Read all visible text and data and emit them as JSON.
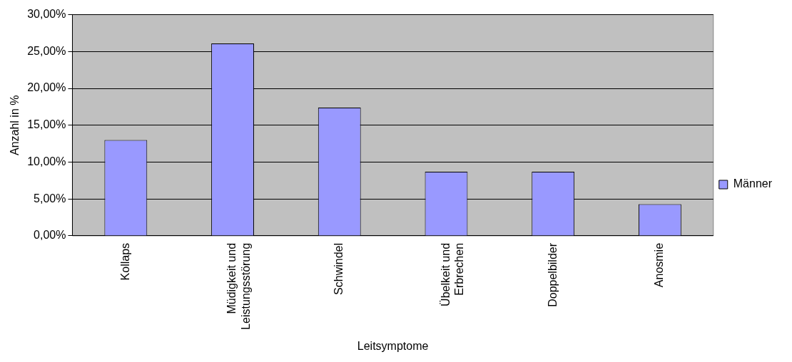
{
  "chart_data": {
    "type": "bar",
    "xlabel": "Leitsymptome",
    "ylabel": "Anzahl in %",
    "categories": [
      "Kollaps",
      "Müdigkeit und\nLeistungsstörung",
      "Schwindel",
      "Übelkeit und\nErbrechen",
      "Doppelbilder",
      "Anosmie"
    ],
    "series": [
      {
        "name": "Männer",
        "color": "#9999ff",
        "values": [
          13,
          26.1,
          17.4,
          8.7,
          8.7,
          4.3
        ]
      }
    ],
    "ylim": [
      0,
      30
    ],
    "yticks": [
      {
        "value": 0,
        "label": "0,00%"
      },
      {
        "value": 5,
        "label": "5,00%"
      },
      {
        "value": 10,
        "label": "10,00%"
      },
      {
        "value": 15,
        "label": "15,00%"
      },
      {
        "value": 20,
        "label": "20,00%"
      },
      {
        "value": 25,
        "label": "25,00%"
      },
      {
        "value": 30,
        "label": "30,00%"
      }
    ],
    "grid": "y",
    "legend": "right"
  }
}
